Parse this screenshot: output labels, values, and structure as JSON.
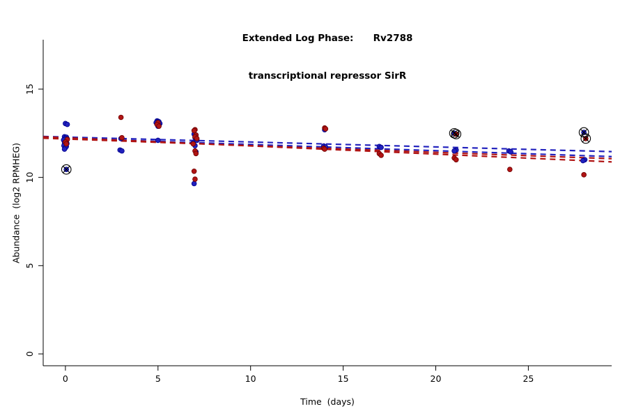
{
  "title": {
    "line1": "Extended Log Phase:      Rv2788",
    "line2": "transcriptional repressor SirR"
  },
  "axes": {
    "x_label": "Time  (days)",
    "y_label": "Abundance  (log2 RPMHEG)"
  },
  "colors": {
    "blue": "#2121bd",
    "blue_edge": "#00008b",
    "red": "#b01414",
    "red_edge": "#6e0000",
    "axis": "#000000",
    "outlier_marker": "#000000"
  },
  "chart_data": {
    "type": "scatter",
    "title": "Extended Log Phase: Rv2788 — transcriptional repressor SirR",
    "xlabel": "Time  (days)",
    "ylabel": "Abundance  (log2 RPMHEG)",
    "x_ticks": [
      0,
      5,
      10,
      15,
      20,
      25
    ],
    "y_ticks": [
      0,
      5,
      10,
      15
    ],
    "x_range": [
      -1.2,
      29.5
    ],
    "y_range": [
      -0.67,
      17.8
    ],
    "grid": false,
    "series": [
      {
        "name": "blue",
        "color_key": "blue",
        "points": [
          [
            0.0,
            13.05
          ],
          [
            0.1,
            13.0
          ],
          [
            -0.05,
            12.3
          ],
          [
            0.05,
            12.28
          ],
          [
            0.0,
            12.2
          ],
          [
            0.1,
            12.18
          ],
          [
            -0.1,
            12.12
          ],
          [
            0.05,
            12.05
          ],
          [
            0.0,
            12.0
          ],
          [
            -0.05,
            11.95
          ],
          [
            0.08,
            11.92
          ],
          [
            0.0,
            11.85
          ],
          [
            -0.08,
            11.8
          ],
          [
            0.05,
            11.75
          ],
          [
            0.0,
            11.68
          ],
          [
            -0.05,
            11.6
          ],
          [
            0.05,
            10.45
          ],
          [
            3.0,
            12.2
          ],
          [
            2.95,
            11.55
          ],
          [
            3.05,
            11.5
          ],
          [
            4.95,
            13.2
          ],
          [
            5.0,
            13.18
          ],
          [
            5.05,
            13.15
          ],
          [
            4.9,
            13.1
          ],
          [
            5.0,
            13.08
          ],
          [
            5.1,
            13.05
          ],
          [
            4.95,
            13.0
          ],
          [
            5.05,
            12.95
          ],
          [
            5.0,
            12.9
          ],
          [
            5.0,
            12.1
          ],
          [
            6.95,
            12.45
          ],
          [
            7.05,
            12.4
          ],
          [
            7.0,
            12.25
          ],
          [
            7.1,
            12.1
          ],
          [
            6.9,
            11.95
          ],
          [
            7.0,
            11.8
          ],
          [
            7.05,
            11.45
          ],
          [
            6.95,
            9.65
          ],
          [
            14.0,
            12.7
          ],
          [
            13.95,
            11.78
          ],
          [
            14.05,
            11.72
          ],
          [
            16.95,
            11.75
          ],
          [
            17.05,
            11.7
          ],
          [
            21.0,
            12.5
          ],
          [
            21.1,
            11.55
          ],
          [
            21.0,
            11.5
          ],
          [
            23.95,
            11.5
          ],
          [
            24.05,
            11.45
          ],
          [
            28.0,
            12.55
          ],
          [
            28.05,
            11.0
          ],
          [
            27.95,
            10.95
          ]
        ]
      },
      {
        "name": "red",
        "color_key": "red",
        "points": [
          [
            0.1,
            12.15
          ],
          [
            0.0,
            12.0
          ],
          [
            0.05,
            11.9
          ],
          [
            3.0,
            13.4
          ],
          [
            3.05,
            12.25
          ],
          [
            5.0,
            13.1
          ],
          [
            4.95,
            13.0
          ],
          [
            5.05,
            12.9
          ],
          [
            7.0,
            12.7
          ],
          [
            6.95,
            12.65
          ],
          [
            7.05,
            12.4
          ],
          [
            7.0,
            12.3
          ],
          [
            7.1,
            12.2
          ],
          [
            6.9,
            11.9
          ],
          [
            7.0,
            11.5
          ],
          [
            7.05,
            11.35
          ],
          [
            6.95,
            10.35
          ],
          [
            7.0,
            9.9
          ],
          [
            14.0,
            12.8
          ],
          [
            14.05,
            12.75
          ],
          [
            13.95,
            11.65
          ],
          [
            14.0,
            11.6
          ],
          [
            16.95,
            11.35
          ],
          [
            17.05,
            11.25
          ],
          [
            21.1,
            12.45
          ],
          [
            21.0,
            11.1
          ],
          [
            21.1,
            11.0
          ],
          [
            24.0,
            10.45
          ],
          [
            28.1,
            12.2
          ],
          [
            28.0,
            10.15
          ]
        ]
      }
    ],
    "circled_outliers": [
      [
        0.05,
        10.45
      ],
      [
        21.0,
        12.5
      ],
      [
        21.1,
        12.45
      ],
      [
        28.0,
        12.55
      ],
      [
        28.1,
        12.2
      ]
    ],
    "trend_lines": [
      {
        "name": "blue-fit-1",
        "color_key": "blue",
        "x1": -1.2,
        "y1": 12.32,
        "x2": 29.5,
        "y2": 11.46
      },
      {
        "name": "blue-fit-2",
        "color_key": "blue",
        "x1": -1.2,
        "y1": 12.26,
        "x2": 29.5,
        "y2": 11.18
      },
      {
        "name": "red-fit-1",
        "color_key": "red",
        "x1": -1.2,
        "y1": 12.3,
        "x2": 29.5,
        "y2": 10.88
      },
      {
        "name": "red-fit-2",
        "color_key": "red",
        "x1": -1.2,
        "y1": 12.22,
        "x2": 29.5,
        "y2": 11.06
      }
    ]
  }
}
